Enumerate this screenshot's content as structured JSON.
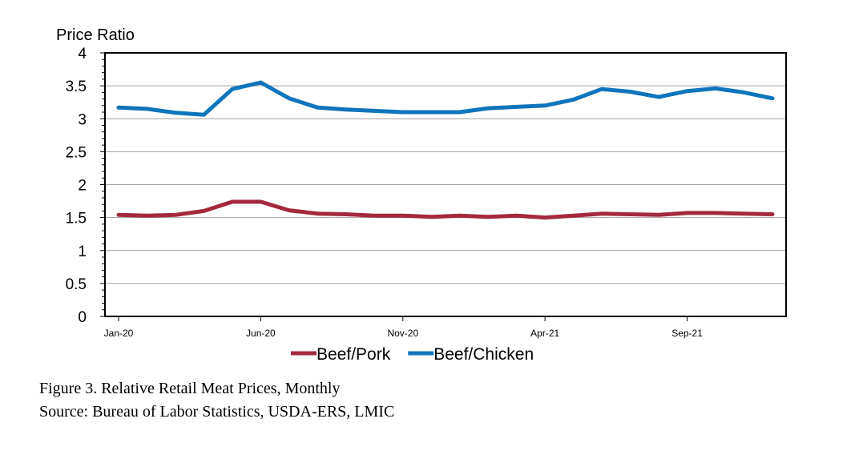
{
  "chart_data": {
    "type": "line",
    "title": "",
    "xlabel": "",
    "ylabel": "Price Ratio",
    "ylim": [
      0,
      4
    ],
    "yticks": [
      "0",
      "0.5",
      "1",
      "1.5",
      "2",
      "2.5",
      "3",
      "3.5",
      "4"
    ],
    "grid": true,
    "legend_position": "bottom",
    "x": [
      "2020-01",
      "2020-02",
      "2020-03",
      "2020-04",
      "2020-05",
      "2020-06",
      "2020-07",
      "2020-08",
      "2020-09",
      "2020-10",
      "2020-11",
      "2020-12",
      "2021-01",
      "2021-02",
      "2021-03",
      "2021-04",
      "2021-05",
      "2021-06",
      "2021-07",
      "2021-08",
      "2021-09",
      "2021-10",
      "2021-11",
      "2021-12"
    ],
    "xtick_labels": [
      {
        "x": "2020-01",
        "label": "Jan-20"
      },
      {
        "x": "2020-06",
        "label": "Jun-20"
      },
      {
        "x": "2020-11",
        "label": "Nov-20"
      },
      {
        "x": "2021-04",
        "label": "Apr-21"
      },
      {
        "x": "2021-09",
        "label": "Sep-21"
      }
    ],
    "series": [
      {
        "name": "Beef/Pork",
        "color": "#a3293d",
        "values": [
          1.54,
          1.53,
          1.54,
          1.6,
          1.74,
          1.74,
          1.61,
          1.56,
          1.55,
          1.53,
          1.53,
          1.51,
          1.53,
          1.51,
          1.53,
          1.5,
          1.53,
          1.56,
          1.55,
          1.54,
          1.57,
          1.57,
          1.56,
          1.55
        ]
      },
      {
        "name": "Beef/Chicken",
        "color": "#0f75bc",
        "values": [
          3.17,
          3.15,
          3.09,
          3.06,
          3.45,
          3.55,
          3.31,
          3.17,
          3.14,
          3.12,
          3.1,
          3.1,
          3.1,
          3.16,
          3.18,
          3.2,
          3.29,
          3.45,
          3.41,
          3.33,
          3.42,
          3.46,
          3.4,
          3.31
        ]
      }
    ]
  },
  "caption": {
    "line1": "Figure 3. Relative Retail Meat Prices, Monthly",
    "line2": "Source: Bureau of Labor Statistics, USDA-ERS, LMIC"
  }
}
